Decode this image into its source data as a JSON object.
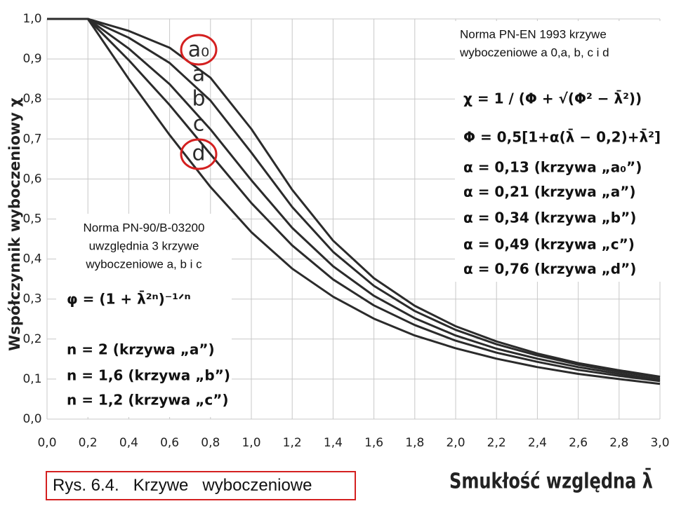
{
  "chart_data": {
    "type": "line",
    "y_label": "Współczynnik wyboczeniowy χ",
    "x_label": "Smukłość względna λ̄",
    "x": [
      0,
      0.2,
      0.4,
      0.6,
      0.8,
      1.0,
      1.2,
      1.4,
      1.6,
      1.8,
      2.0,
      2.2,
      2.4,
      2.6,
      2.8,
      3.0
    ],
    "series": [
      {
        "name": "a₀",
        "color": "#2b2b2b",
        "values": [
          1,
          1,
          0.97,
          0.928,
          0.853,
          0.725,
          0.573,
          0.446,
          0.352,
          0.283,
          0.232,
          0.194,
          0.164,
          0.14,
          0.122,
          0.106
        ]
      },
      {
        "name": "a",
        "color": "#2b2b2b",
        "values": [
          1,
          1,
          0.953,
          0.89,
          0.796,
          0.666,
          0.53,
          0.418,
          0.333,
          0.27,
          0.223,
          0.187,
          0.159,
          0.136,
          0.118,
          0.104
        ]
      },
      {
        "name": "b",
        "color": "#2b2b2b",
        "values": [
          1,
          1,
          0.926,
          0.837,
          0.724,
          0.597,
          0.478,
          0.382,
          0.308,
          0.252,
          0.209,
          0.176,
          0.151,
          0.13,
          0.113,
          0.099
        ]
      },
      {
        "name": "c",
        "color": "#2b2b2b",
        "values": [
          1,
          1,
          0.897,
          0.785,
          0.662,
          0.54,
          0.434,
          0.349,
          0.284,
          0.235,
          0.196,
          0.166,
          0.143,
          0.123,
          0.108,
          0.095
        ]
      },
      {
        "name": "d",
        "color": "#2b2b2b",
        "values": [
          1,
          1,
          0.85,
          0.71,
          0.58,
          0.467,
          0.376,
          0.306,
          0.251,
          0.209,
          0.177,
          0.151,
          0.13,
          0.113,
          0.1,
          0.088
        ]
      }
    ],
    "xlim": [
      0,
      3
    ],
    "ylim": [
      0,
      1
    ],
    "xticks": [
      {
        "value": 0,
        "label": "0,0"
      },
      {
        "value": 0.2,
        "label": "0,2"
      },
      {
        "value": 0.4,
        "label": "0,4"
      },
      {
        "value": 0.6,
        "label": "0,6"
      },
      {
        "value": 0.8,
        "label": "0,8"
      },
      {
        "value": 1.0,
        "label": "1,0"
      },
      {
        "value": 1.2,
        "label": "1,2"
      },
      {
        "value": 1.4,
        "label": "1,4"
      },
      {
        "value": 1.6,
        "label": "1,6"
      },
      {
        "value": 1.8,
        "label": "1,8"
      },
      {
        "value": 2.0,
        "label": "2,0"
      },
      {
        "value": 2.2,
        "label": "2,2"
      },
      {
        "value": 2.4,
        "label": "2,4"
      },
      {
        "value": 2.6,
        "label": "2,6"
      },
      {
        "value": 2.8,
        "label": "2,8"
      },
      {
        "value": 3.0,
        "label": "3,0"
      }
    ],
    "yticks": [
      {
        "value": 0,
        "label": "0,0"
      },
      {
        "value": 0.1,
        "label": "0,1"
      },
      {
        "value": 0.2,
        "label": "0,2"
      },
      {
        "value": 0.3,
        "label": "0,3"
      },
      {
        "value": 0.4,
        "label": "0,4"
      },
      {
        "value": 0.5,
        "label": "0,5"
      },
      {
        "value": 0.6,
        "label": "0,6"
      },
      {
        "value": 0.7,
        "label": "0,7"
      },
      {
        "value": 0.8,
        "label": "0,8"
      },
      {
        "value": 0.9,
        "label": "0,9"
      },
      {
        "value": 1.0,
        "label": "1,0"
      }
    ],
    "grid": true,
    "annotations": {
      "en_box": {
        "title_lines": [
          "Norma PN-EN 1993 krzywe",
          "wyboczeniowe a 0,a, b, c i d"
        ],
        "formulas": [
          "χ = 1 / (Φ + √(Φ² − λ̄²))",
          "Φ = 0,5[1+α(λ̄ − 0,2)+λ̄²]",
          "α = 0,13  (krzywa „a₀”)",
          "α = 0,21  (krzywa „a”)",
          "α = 0,34  (krzywa „b”)",
          "α = 0,49  (krzywa „c”)",
          "α = 0,76  (krzywa „d”)"
        ]
      },
      "pn_box": {
        "title_lines": [
          "Norma PN-90/B-03200",
          "uwzględnia 3 krzywe",
          "wyboczeniowe a, b i c"
        ],
        "formulas": [
          "φ = (1 + λ̄²ⁿ)⁻¹ᐟⁿ",
          "n = 2  (krzywa „a”)",
          "n = 1,6  (krzywa „b”)",
          "n = 1,2  (krzywa „c”)"
        ]
      },
      "caption": "Rys. 6.4.   Krzywe   wyboczeniowe"
    }
  }
}
